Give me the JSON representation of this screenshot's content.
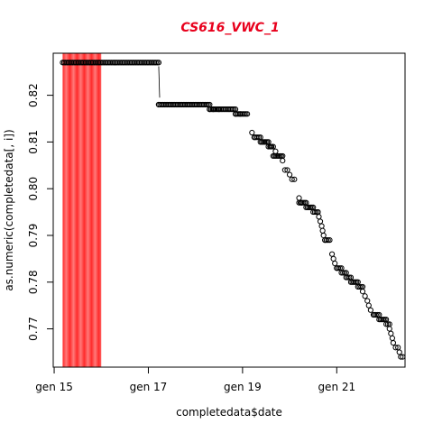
{
  "chart_data": {
    "type": "scatter",
    "title": "CS616_VWC_1",
    "title_color": "#e8001c",
    "xlabel": "completedata$date",
    "ylabel": "as.numeric(completedata[, i])",
    "xlim": [
      -0.02,
      7.45
    ],
    "ylim": [
      0.7618,
      0.829
    ],
    "x_ticks": [
      {
        "value": 0,
        "label": "gen 15"
      },
      {
        "value": 2,
        "label": "gen 17"
      },
      {
        "value": 4,
        "label": "gen 19"
      },
      {
        "value": 6,
        "label": "gen 21"
      }
    ],
    "y_ticks": [
      {
        "value": 0.77,
        "label": "0.77"
      },
      {
        "value": 0.78,
        "label": "0.78"
      },
      {
        "value": 0.79,
        "label": "0.79"
      },
      {
        "value": 0.8,
        "label": "0.80"
      },
      {
        "value": 0.81,
        "label": "0.81"
      },
      {
        "value": 0.82,
        "label": "0.82"
      }
    ],
    "highlight_band": {
      "x_start": 0.18,
      "x_end": 1.0,
      "color": "#ff3b3b"
    },
    "segments": [
      {
        "x0": 0.18,
        "x1": 2.22,
        "y": 0.827
      },
      {
        "x0": 2.22,
        "x1": 3.3,
        "y": 0.818
      },
      {
        "x0": 3.3,
        "x1": 3.85,
        "y": 0.817
      },
      {
        "x0": 3.85,
        "x1": 4.1,
        "y": 0.816
      },
      {
        "x0": 4.25,
        "x1": 4.38,
        "y": 0.811
      },
      {
        "x0": 4.38,
        "x1": 4.55,
        "y": 0.81
      },
      {
        "x0": 4.55,
        "x1": 4.65,
        "y": 0.809
      },
      {
        "x0": 4.65,
        "x1": 4.85,
        "y": 0.807
      },
      {
        "x0": 5.2,
        "x1": 5.35,
        "y": 0.797
      },
      {
        "x0": 5.35,
        "x1": 5.5,
        "y": 0.796
      },
      {
        "x0": 5.5,
        "x1": 5.6,
        "y": 0.795
      },
      {
        "x0": 5.75,
        "x1": 5.85,
        "y": 0.789
      },
      {
        "x0": 6.0,
        "x1": 6.1,
        "y": 0.783
      },
      {
        "x0": 6.1,
        "x1": 6.2,
        "y": 0.782
      },
      {
        "x0": 6.2,
        "x1": 6.3,
        "y": 0.781
      },
      {
        "x0": 6.3,
        "x1": 6.45,
        "y": 0.78
      },
      {
        "x0": 6.45,
        "x1": 6.55,
        "y": 0.779
      },
      {
        "x0": 6.8,
        "x1": 6.9,
        "y": 0.773
      },
      {
        "x0": 6.9,
        "x1": 7.05,
        "y": 0.772
      },
      {
        "x0": 7.05,
        "x1": 7.12,
        "y": 0.771
      }
    ],
    "points": [
      [
        2.22,
        0.818
      ],
      [
        3.3,
        0.817
      ],
      [
        3.38,
        0.817
      ],
      [
        3.5,
        0.817
      ],
      [
        3.85,
        0.816
      ],
      [
        3.95,
        0.816
      ],
      [
        4.2,
        0.812
      ],
      [
        4.25,
        0.811
      ],
      [
        4.6,
        0.809
      ],
      [
        4.7,
        0.808
      ],
      [
        4.85,
        0.806
      ],
      [
        4.9,
        0.804
      ],
      [
        4.95,
        0.804
      ],
      [
        5.0,
        0.803
      ],
      [
        5.05,
        0.802
      ],
      [
        5.1,
        0.802
      ],
      [
        5.2,
        0.798
      ],
      [
        5.25,
        0.797
      ],
      [
        5.6,
        0.795
      ],
      [
        5.62,
        0.794
      ],
      [
        5.65,
        0.793
      ],
      [
        5.68,
        0.792
      ],
      [
        5.7,
        0.791
      ],
      [
        5.72,
        0.79
      ],
      [
        5.75,
        0.789
      ],
      [
        5.9,
        0.786
      ],
      [
        5.93,
        0.785
      ],
      [
        5.96,
        0.784
      ],
      [
        6.0,
        0.783
      ],
      [
        6.55,
        0.778
      ],
      [
        6.6,
        0.777
      ],
      [
        6.65,
        0.776
      ],
      [
        6.68,
        0.775
      ],
      [
        6.72,
        0.774
      ],
      [
        6.78,
        0.773
      ],
      [
        7.12,
        0.77
      ],
      [
        7.15,
        0.769
      ],
      [
        7.18,
        0.768
      ],
      [
        7.2,
        0.767
      ],
      [
        7.25,
        0.766
      ],
      [
        7.3,
        0.766
      ],
      [
        7.33,
        0.765
      ],
      [
        7.36,
        0.764
      ],
      [
        7.4,
        0.764
      ]
    ]
  }
}
